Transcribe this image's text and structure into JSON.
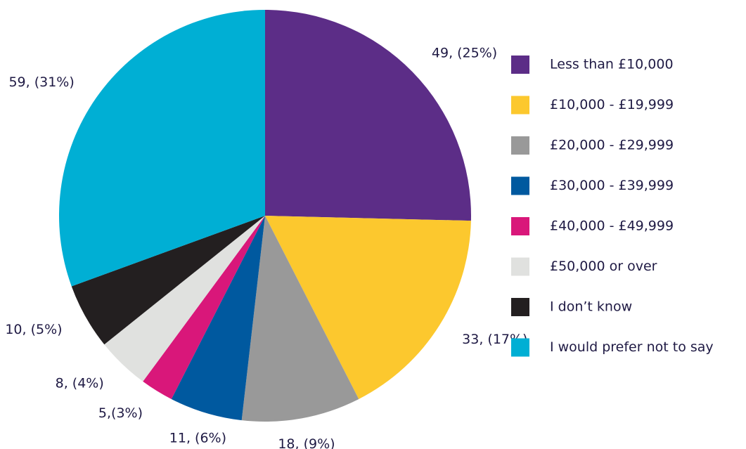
{
  "chart_data": {
    "type": "pie",
    "categories": [
      "Less than £10,000",
      "£10,000 - £19,999",
      "£20,000 - £29,999",
      "£30,000 - £39,999",
      "£40,000 - £49,999",
      "£50,000  or over",
      "I don’t know",
      "I would prefer not to say"
    ],
    "values": [
      49,
      33,
      18,
      11,
      5,
      8,
      10,
      59
    ],
    "value_labels": [
      "49, (25%)",
      "33, (17%)",
      "18, (9%)",
      "11, (6%)",
      "5,(3%)",
      "8, (4%)",
      "10, (5%)",
      "59, (31%)"
    ],
    "colors": [
      "#5c2d87",
      "#fcc82e",
      "#999999",
      "#00599f",
      "#d9177a",
      "#e0e1df",
      "#231f20",
      "#00afd4"
    ],
    "legend": "right"
  }
}
